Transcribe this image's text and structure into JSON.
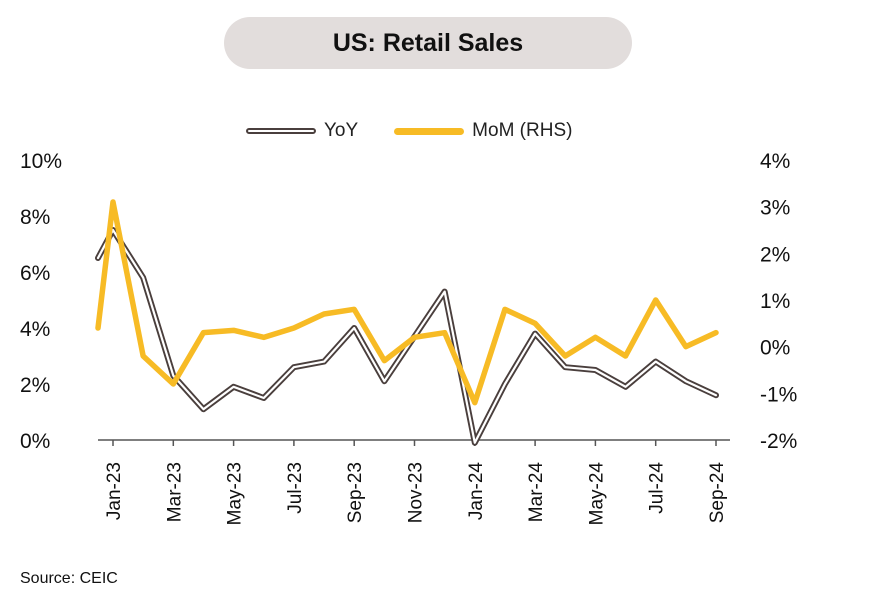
{
  "title": "US: Retail Sales",
  "source": "Source: CEIC",
  "chart_data": {
    "type": "line",
    "x": [
      "Jan-23",
      "Feb-23",
      "Mar-23",
      "Apr-23",
      "May-23",
      "Jun-23",
      "Jul-23",
      "Aug-23",
      "Sep-23",
      "Oct-23",
      "Nov-23",
      "Dec-23",
      "Jan-24",
      "Feb-24",
      "Mar-24",
      "Apr-24",
      "May-24",
      "Jun-24",
      "Jul-24",
      "Aug-24",
      "Sep-24"
    ],
    "x_tick_labels": [
      "Jan-23",
      "Mar-23",
      "May-23",
      "Jul-23",
      "Sep-23",
      "Nov-23",
      "Jan-24",
      "Mar-24",
      "May-24",
      "Jul-24",
      "Sep-24"
    ],
    "series": [
      {
        "name": "YoY",
        "axis": "left",
        "color": "#4a3f3d",
        "start": 6.5,
        "values": [
          7.5,
          5.8,
          2.3,
          1.1,
          1.9,
          1.5,
          2.6,
          2.8,
          4.0,
          2.1,
          3.7,
          5.3,
          -0.1,
          2.0,
          3.8,
          2.6,
          2.5,
          1.9,
          2.8,
          2.1,
          1.6
        ]
      },
      {
        "name": "MoM (RHS)",
        "axis": "right",
        "color": "#f7bb25",
        "start": 0.4,
        "values": [
          3.1,
          -0.2,
          -0.8,
          0.3,
          0.35,
          0.2,
          0.4,
          0.7,
          0.8,
          -0.3,
          0.2,
          0.3,
          -1.2,
          0.8,
          0.5,
          -0.2,
          0.2,
          -0.2,
          1.0,
          0.0,
          0.3
        ]
      }
    ],
    "y_left": {
      "min": 0,
      "max": 10,
      "step": 2,
      "tick_labels": [
        "0%",
        "2%",
        "4%",
        "6%",
        "8%",
        "10%"
      ]
    },
    "y_right": {
      "min": -2,
      "max": 4,
      "step": 1,
      "tick_labels": [
        "-2%",
        "-1%",
        "0%",
        "1%",
        "2%",
        "3%",
        "4%"
      ]
    },
    "grid": false,
    "legend_placement": "top-center"
  }
}
